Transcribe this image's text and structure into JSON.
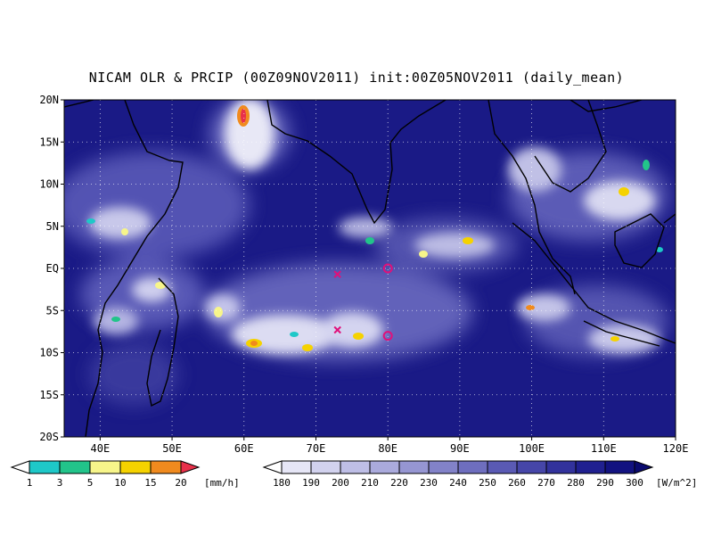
{
  "title": "NICAM OLR & PRCIP (00Z09NOV2011) init:00Z05NOV2011 (daily_mean)",
  "map": {
    "lon_range": [
      35,
      120
    ],
    "lat_range": [
      -20,
      20
    ],
    "lon_ticks": [
      "40E",
      "50E",
      "60E",
      "70E",
      "80E",
      "90E",
      "100E",
      "110E",
      "120E"
    ],
    "lon_tick_values": [
      40,
      50,
      60,
      70,
      80,
      90,
      100,
      110,
      120
    ],
    "lat_ticks": [
      "20N",
      "15N",
      "10N",
      "5N",
      "EQ",
      "5S",
      "10S",
      "15S",
      "20S"
    ],
    "lat_tick_values": [
      20,
      15,
      10,
      5,
      0,
      -5,
      -10,
      -15,
      -20
    ],
    "grid": true,
    "markers": [
      {
        "type": "x-mark",
        "lon": 73,
        "lat": -0.7,
        "color": "#e0107a"
      },
      {
        "type": "x-mark",
        "lon": 73,
        "lat": -7.3,
        "color": "#e0107a"
      },
      {
        "type": "circle-mark",
        "lon": 80,
        "lat": 0,
        "color": "#e0107a"
      },
      {
        "type": "circle-mark",
        "lon": 80,
        "lat": -8,
        "color": "#e0107a"
      }
    ]
  },
  "colorbar_precip": {
    "labels": [
      "1",
      "3",
      "5",
      "10",
      "15",
      "20"
    ],
    "unit": "[mm/h]",
    "colors": [
      "#1ec8c8",
      "#22c48a",
      "#f7f58a",
      "#f5d200",
      "#f08a1e",
      "#e8304a"
    ]
  },
  "colorbar_olr": {
    "labels": [
      "180",
      "190",
      "200",
      "210",
      "220",
      "230",
      "240",
      "250",
      "260",
      "270",
      "280",
      "290",
      "300"
    ],
    "unit": "[W/m^2]",
    "colors": [
      "#ffffff",
      "#e6e6f6",
      "#d2d2ee",
      "#bebee6",
      "#aaaadc",
      "#9696d2",
      "#8282c8",
      "#6e6ebe",
      "#5a5ab4",
      "#4646a8",
      "#32329c",
      "#202090",
      "#121280",
      "#0a0a6e"
    ]
  }
}
